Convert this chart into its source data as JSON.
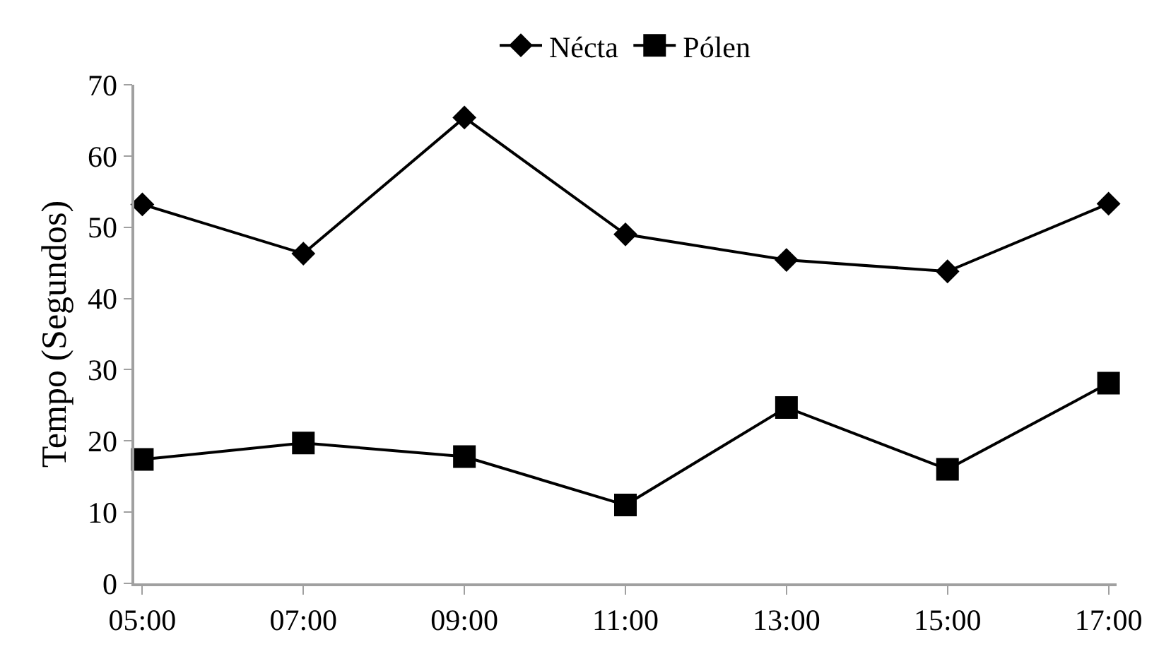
{
  "chart_data": {
    "type": "line",
    "ylabel": "Tempo (Segundos)",
    "categories": [
      "05:00",
      "07:00",
      "09:00",
      "11:00",
      "13:00",
      "15:00",
      "17:00"
    ],
    "series": [
      {
        "name": "Nécta",
        "color": "#000000",
        "marker": "diamond",
        "values": [
          53.2,
          46.3,
          65.4,
          49.0,
          45.4,
          43.8,
          53.3
        ]
      },
      {
        "name": "Pólen",
        "color": "#000000",
        "marker": "square",
        "values": [
          17.4,
          19.7,
          17.8,
          11.0,
          24.7,
          16.0,
          28.1
        ]
      }
    ],
    "ylim": [
      0,
      70
    ],
    "yticks": [
      0,
      10,
      20,
      30,
      40,
      50,
      60,
      70
    ],
    "grid": false,
    "legend": "top",
    "line_style": "solid"
  }
}
